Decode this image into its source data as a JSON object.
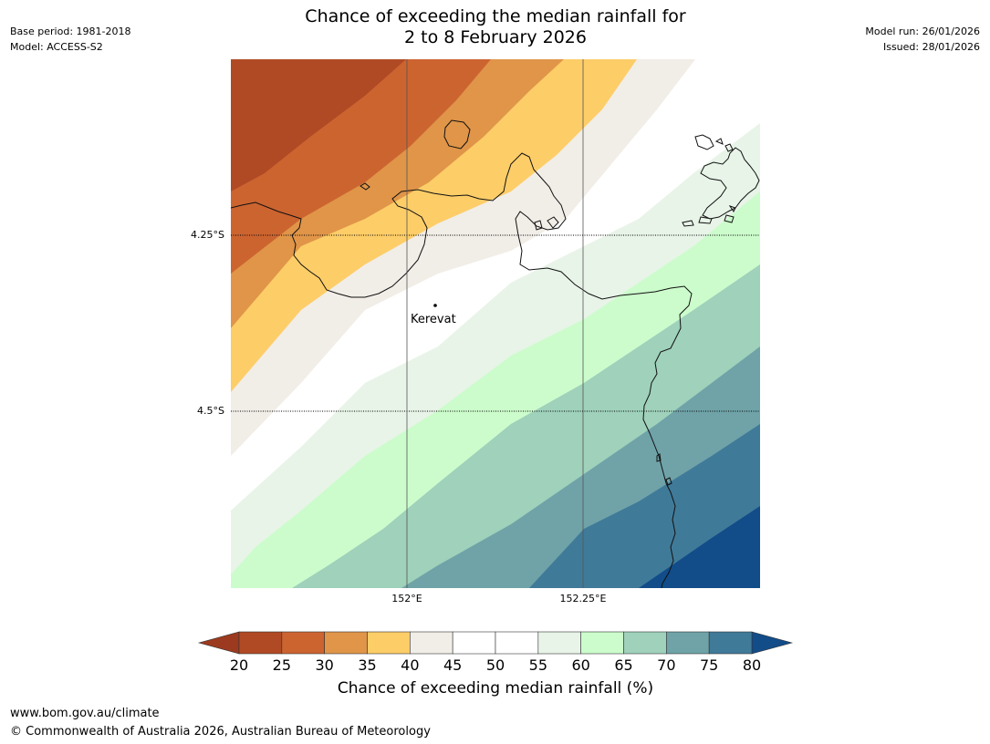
{
  "header": {
    "base_period": "Base period: 1981-2018",
    "model": "Model: ACCESS-S2",
    "model_run": "Model run: 26/01/2026",
    "issued": "Issued: 28/01/2026",
    "title_line1": "Chance of exceeding the median rainfall for",
    "title_line2": "2 to 8 February 2026"
  },
  "map": {
    "lat_labels": [
      "4.25°S",
      "4.5°S"
    ],
    "lon_labels": [
      "152°E",
      "152.25°E"
    ],
    "place": {
      "name": "Kerevat"
    }
  },
  "colorbar": {
    "title": "Chance of exceeding median rainfall (%)",
    "ticks": [
      "20",
      "25",
      "30",
      "35",
      "40",
      "45",
      "50",
      "55",
      "60",
      "65",
      "70",
      "75",
      "80"
    ],
    "bins": [
      {
        "range": "<20",
        "color": "#9c3a1f"
      },
      {
        "range": "20-25",
        "color": "#b04a24"
      },
      {
        "range": "25-30",
        "color": "#cc6430"
      },
      {
        "range": "30-35",
        "color": "#e09548"
      },
      {
        "range": "35-40",
        "color": "#fdcd68"
      },
      {
        "range": "40-45",
        "color": "#f1ede7"
      },
      {
        "range": "45-50",
        "color": "#ffffff"
      },
      {
        "range": "50-55",
        "color": "#ffffff"
      },
      {
        "range": "55-60",
        "color": "#e8f4e8"
      },
      {
        "range": "60-65",
        "color": "#ccfccc"
      },
      {
        "range": "65-70",
        "color": "#9fd1bb"
      },
      {
        "range": "70-75",
        "color": "#6fa3a8"
      },
      {
        "range": "75-80",
        "color": "#407a99"
      },
      {
        "range": ">80",
        "color": "#124c89"
      }
    ]
  },
  "footer": {
    "url": "www.bom.gov.au/climate",
    "copyright": "© Commonwealth of Australia 2026, Australian Bureau of Meteorology"
  }
}
